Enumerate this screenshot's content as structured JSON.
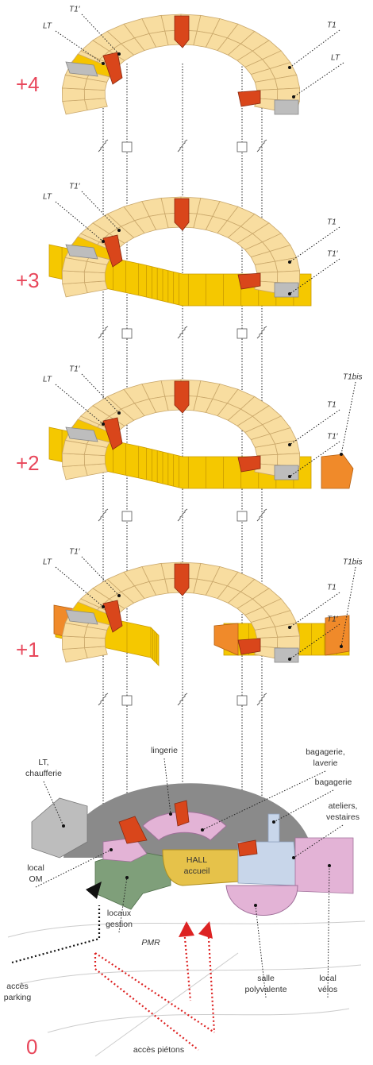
{
  "floors": [
    {
      "label": "+4",
      "tags": [
        "T1′",
        "LT",
        "T1",
        "LT"
      ]
    },
    {
      "label": "+3",
      "tags": [
        "LT",
        "T1′",
        "T1",
        "T1′"
      ]
    },
    {
      "label": "+2",
      "tags": [
        "LT",
        "T1′",
        "T1",
        "T1′",
        "T1bis"
      ]
    },
    {
      "label": "+1",
      "tags": [
        "LT",
        "T1′",
        "T1",
        "T1′",
        "T1bis"
      ]
    }
  ],
  "ground": {
    "label": "0",
    "rooms": [
      {
        "lines": [
          "LT,",
          "chaufferie"
        ]
      },
      {
        "lines": [
          "lingerie"
        ]
      },
      {
        "lines": [
          "bagagerie,",
          "laverie"
        ]
      },
      {
        "lines": [
          "bagagerie"
        ]
      },
      {
        "lines": [
          "ateliers,",
          "vestaires"
        ]
      },
      {
        "lines": [
          "local",
          "OM"
        ]
      },
      {
        "lines": [
          "locaux",
          "gestion"
        ]
      },
      {
        "lines": [
          "HALL",
          "accueil"
        ]
      },
      {
        "lines": [
          "salle",
          "polyvalente"
        ]
      },
      {
        "lines": [
          "local",
          "vélos"
        ]
      },
      {
        "lines": [
          "accès",
          "parking"
        ]
      },
      {
        "lines": [
          "PMR"
        ]
      },
      {
        "lines": [
          "accès piétons"
        ]
      }
    ]
  }
}
